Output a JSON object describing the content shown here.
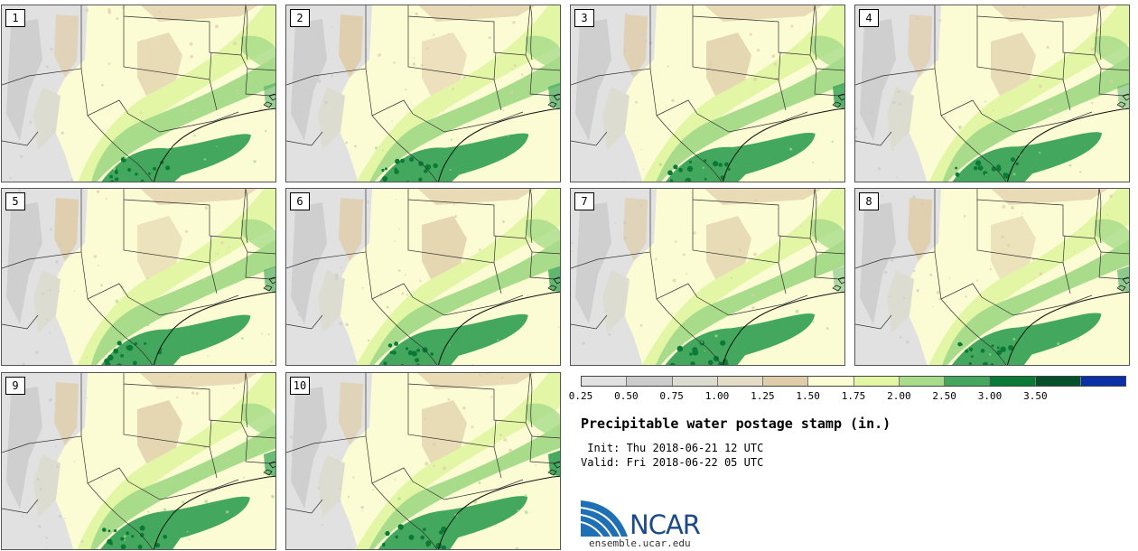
{
  "panels": [
    {
      "label": "1",
      "variant": 0
    },
    {
      "label": "2",
      "variant": 1
    },
    {
      "label": "3",
      "variant": 2
    },
    {
      "label": "4",
      "variant": 3
    },
    {
      "label": "5",
      "variant": 4
    },
    {
      "label": "6",
      "variant": 5
    },
    {
      "label": "7",
      "variant": 6
    },
    {
      "label": "8",
      "variant": 7
    },
    {
      "label": "9",
      "variant": 8
    },
    {
      "label": "10",
      "variant": 9
    }
  ],
  "colorbar": {
    "colors": [
      "#e1e1e1",
      "#cbcbcb",
      "#dcdcd0",
      "#e4dcc6",
      "#dfcda9",
      "#fcfcd4",
      "#e3f6a6",
      "#a8dc8a",
      "#43a85d",
      "#0b7a37",
      "#06502a",
      "#0b2fa6"
    ],
    "ticks": [
      "0.25",
      "0.50",
      "0.75",
      "1.00",
      "1.25",
      "1.50",
      "1.75",
      "2.00",
      "2.50",
      "3.00",
      "3.50"
    ]
  },
  "legend": {
    "title": "Precipitable water postage stamp (in.)",
    "init": " Init: Thu 2018-06-21 12 UTC",
    "valid": "Valid: Fri 2018-06-22 05 UTC"
  },
  "logo": {
    "name": "NCAR",
    "url": "ensemble.ucar.edu",
    "icon": "ncar-logo-icon",
    "color": "#1a4a8a"
  }
}
